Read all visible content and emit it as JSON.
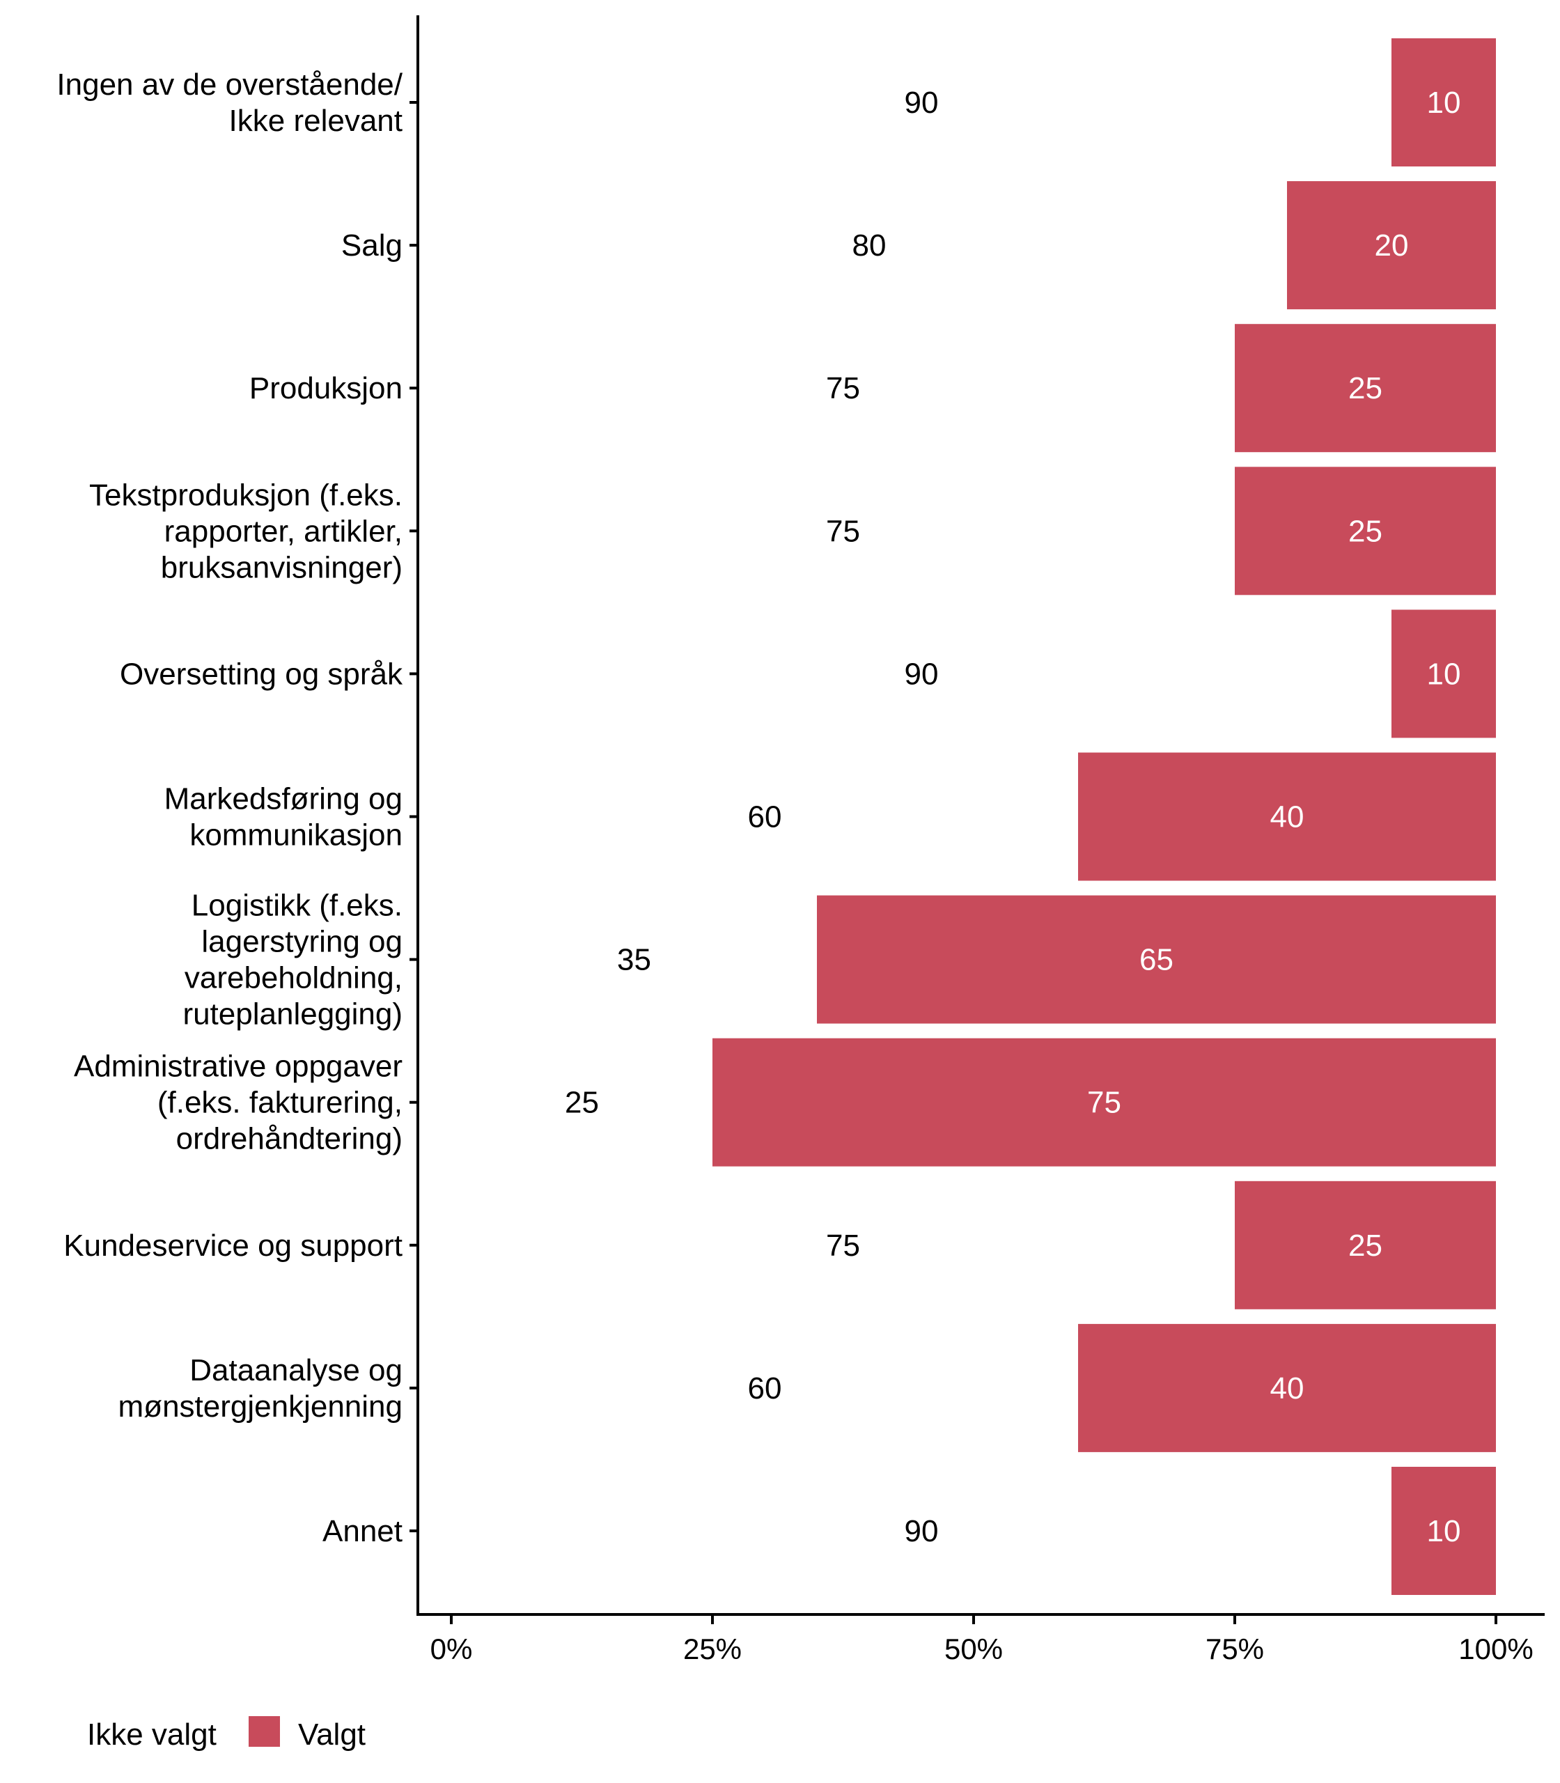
{
  "chart_data": {
    "type": "bar",
    "orientation": "horizontal",
    "stacked": "percent",
    "title": "",
    "xlabel": "",
    "ylabel": "",
    "xlim": [
      0,
      100
    ],
    "x_ticks": [
      "0%",
      "25%",
      "50%",
      "75%",
      "100%"
    ],
    "x_tick_values": [
      0,
      25,
      50,
      75,
      100
    ],
    "grid": false,
    "legend_position": "bottom-left",
    "categories": [
      [
        "Ingen av de overstående/",
        "Ikke relevant"
      ],
      [
        "Salg"
      ],
      [
        "Produksjon"
      ],
      [
        "Tekstproduksjon (f.eks.",
        "rapporter, artikler,",
        "bruksanvisninger)"
      ],
      [
        "Oversetting og språk"
      ],
      [
        "Markedsføring og",
        "kommunikasjon"
      ],
      [
        "Logistikk (f.eks.",
        "lagerstyring og",
        "varebeholdning,",
        "ruteplanlegging)"
      ],
      [
        "Administrative oppgaver",
        "(f.eks. fakturering,",
        "ordrehåndtering)"
      ],
      [
        "Kundeservice og support"
      ],
      [
        "Dataanalyse og",
        "mønstergjenkjenning"
      ],
      [
        "Annet"
      ]
    ],
    "series": [
      {
        "name": "Ikke valgt",
        "color": "#FFFFFF",
        "label_color": "#000000",
        "values": [
          90,
          80,
          75,
          75,
          90,
          60,
          35,
          25,
          75,
          60,
          90
        ]
      },
      {
        "name": "Valgt",
        "color": "#C84B5B",
        "label_color": "#FFFFFF",
        "values": [
          10,
          20,
          25,
          25,
          10,
          40,
          65,
          75,
          25,
          40,
          10
        ]
      }
    ]
  },
  "legend": {
    "items": [
      {
        "label": "Ikke valgt",
        "color": "#FFFFFF"
      },
      {
        "label": "Valgt",
        "color": "#C84B5B"
      }
    ]
  }
}
